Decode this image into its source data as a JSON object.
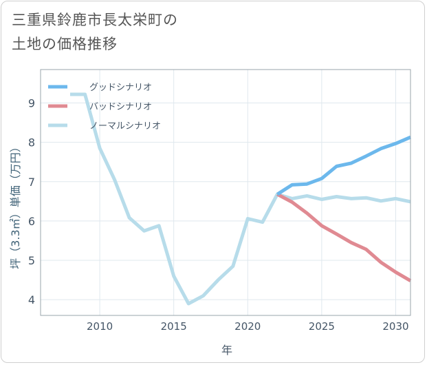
{
  "title_lines": [
    "三重県鈴鹿市長太栄町の",
    "土地の価格推移"
  ],
  "chart_data": {
    "type": "line",
    "title": "三重県鈴鹿市長太栄町の土地の価格推移",
    "xlabel": "年",
    "ylabel": "坪（3.3㎡）単価（万円）",
    "xlim": [
      2006,
      2031
    ],
    "ylim": [
      3.6,
      9.85
    ],
    "xticks": [
      2010,
      2015,
      2020,
      2025,
      2030
    ],
    "yticks": [
      4,
      5,
      6,
      7,
      8,
      9
    ],
    "grid": true,
    "legend_position": "top-left",
    "series": [
      {
        "name": "グッドシナリオ",
        "color": "#6cb8ec",
        "x": [
          2022,
          2023,
          2024,
          2025,
          2026,
          2027,
          2028,
          2029,
          2030,
          2031
        ],
        "y": [
          6.68,
          6.92,
          6.94,
          7.08,
          7.39,
          7.47,
          7.65,
          7.84,
          7.97,
          8.13
        ]
      },
      {
        "name": "バッドシナリオ",
        "color": "#e08a92",
        "x": [
          2022,
          2023,
          2024,
          2025,
          2026,
          2027,
          2028,
          2029,
          2030,
          2031
        ],
        "y": [
          6.68,
          6.48,
          6.2,
          5.88,
          5.67,
          5.45,
          5.28,
          4.95,
          4.7,
          4.48
        ]
      },
      {
        "name": "ノーマルシナリオ",
        "color": "#b7dcea",
        "x": [
          2008,
          2009,
          2010,
          2011,
          2012,
          2013,
          2014,
          2015,
          2016,
          2017,
          2018,
          2019,
          2020,
          2021,
          2022,
          2023,
          2024,
          2025,
          2026,
          2027,
          2028,
          2029,
          2030,
          2031
        ],
        "y": [
          9.22,
          9.22,
          7.85,
          7.05,
          6.08,
          5.75,
          5.88,
          4.6,
          3.9,
          4.1,
          4.5,
          4.85,
          6.06,
          5.97,
          6.68,
          6.57,
          6.64,
          6.55,
          6.62,
          6.57,
          6.59,
          6.51,
          6.57,
          6.49
        ]
      }
    ]
  }
}
